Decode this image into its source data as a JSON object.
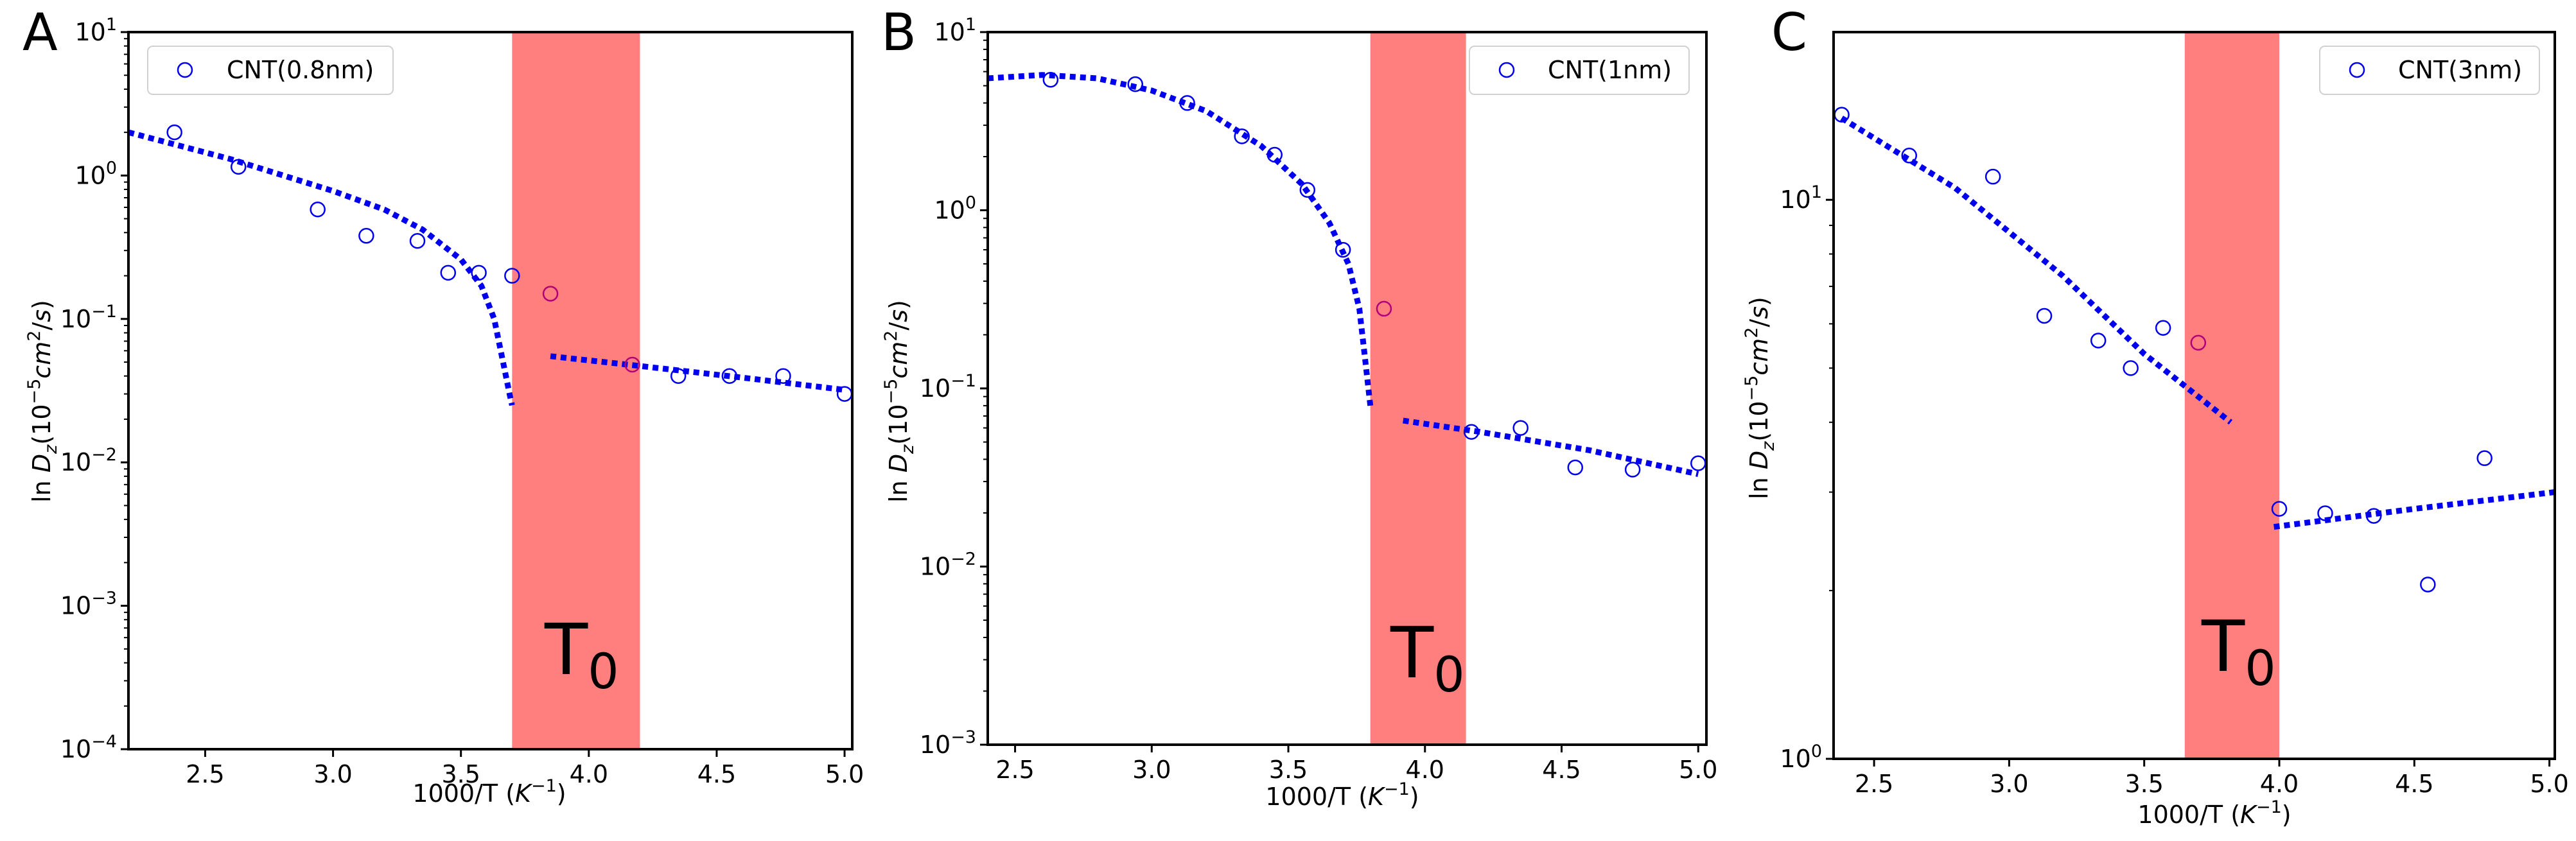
{
  "chart_data": [
    {
      "panel_label": "A",
      "type": "scatter",
      "yscale": "log",
      "xlim": [
        2.2,
        5.03
      ],
      "ylim_exp": [
        -4,
        1
      ],
      "x_ticks": [
        "2.5",
        "3.0",
        "3.5",
        "4.0",
        "4.5",
        "5.0"
      ],
      "y_ticks": [
        {
          "base": "10",
          "exp": "1"
        },
        {
          "base": "10",
          "exp": "0"
        },
        {
          "base": "10",
          "exp": "−1"
        },
        {
          "base": "10",
          "exp": "−2"
        },
        {
          "base": "10",
          "exp": "−3"
        },
        {
          "base": "10",
          "exp": "−4"
        }
      ],
      "xlabel": "1000/T (",
      "xlabel_unit": "K",
      "xlabel_exp": "−1",
      "xlabel_close": ")",
      "ylabel": {
        "pre": "ln ",
        "var": "D",
        "sub": "z",
        "open": "(10",
        "exp1": "−5",
        "unit": "cm",
        "exp2": "2",
        "slash": "/",
        "s": "s",
        "close": ")"
      },
      "legend": "CNT(0.8nm)",
      "band": {
        "x0": 3.7,
        "x1": 4.2,
        "label": "T",
        "label_sub": "0"
      },
      "series": [
        {
          "name": "CNT(0.8nm)",
          "points": [
            [
              2.38,
              2.0
            ],
            [
              2.63,
              1.15
            ],
            [
              2.94,
              0.58
            ],
            [
              3.13,
              0.38
            ],
            [
              3.33,
              0.35
            ],
            [
              3.45,
              0.21
            ],
            [
              3.57,
              0.21
            ],
            [
              3.7,
              0.2
            ],
            [
              3.85,
              0.15
            ],
            [
              4.17,
              0.048
            ],
            [
              4.35,
              0.04
            ],
            [
              4.55,
              0.04
            ],
            [
              4.76,
              0.04
            ],
            [
              5.0,
              0.03
            ]
          ]
        }
      ],
      "fit_lines": [
        [
          [
            2.2,
            2.0
          ],
          [
            2.6,
            1.3
          ],
          [
            3.0,
            0.78
          ],
          [
            3.2,
            0.58
          ],
          [
            3.35,
            0.42
          ],
          [
            3.5,
            0.26
          ],
          [
            3.58,
            0.17
          ],
          [
            3.63,
            0.1
          ],
          [
            3.66,
            0.055
          ],
          [
            3.69,
            0.03
          ],
          [
            3.7,
            0.025
          ]
        ],
        [
          [
            3.85,
            0.055
          ],
          [
            4.2,
            0.047
          ],
          [
            4.6,
            0.039
          ],
          [
            5.0,
            0.032
          ]
        ]
      ]
    },
    {
      "panel_label": "B",
      "type": "scatter",
      "yscale": "log",
      "xlim": [
        2.4,
        5.03
      ],
      "ylim_exp": [
        -3,
        1
      ],
      "x_ticks": [
        "2.5",
        "3.0",
        "3.5",
        "4.0",
        "4.5",
        "5.0"
      ],
      "y_ticks": [
        {
          "base": "10",
          "exp": "1"
        },
        {
          "base": "10",
          "exp": "0"
        },
        {
          "base": "10",
          "exp": "−1"
        },
        {
          "base": "10",
          "exp": "−2"
        },
        {
          "base": "10",
          "exp": "−3"
        }
      ],
      "xlabel": "1000/T (",
      "xlabel_unit": "K",
      "xlabel_exp": "−1",
      "xlabel_close": ")",
      "ylabel": {
        "pre": "ln ",
        "var": "D",
        "sub": "z",
        "open": "(10",
        "exp1": "−5",
        "unit": "cm",
        "exp2": "2",
        "slash": "/",
        "s": "s",
        "close": ")"
      },
      "legend": "CNT(1nm)",
      "band": {
        "x0": 3.8,
        "x1": 4.15,
        "label": "T",
        "label_sub": "0"
      },
      "series": [
        {
          "name": "CNT(1nm)",
          "points": [
            [
              2.63,
              5.4
            ],
            [
              2.94,
              5.1
            ],
            [
              3.13,
              4.0
            ],
            [
              3.33,
              2.6
            ],
            [
              3.45,
              2.05
            ],
            [
              3.57,
              1.3
            ],
            [
              3.7,
              0.6
            ],
            [
              3.85,
              0.28
            ],
            [
              4.17,
              0.057
            ],
            [
              4.35,
              0.06
            ],
            [
              4.55,
              0.036
            ],
            [
              4.76,
              0.035
            ],
            [
              5.0,
              0.038
            ]
          ]
        }
      ],
      "fit_lines": [
        [
          [
            2.4,
            5.5
          ],
          [
            2.6,
            5.75
          ],
          [
            2.8,
            5.5
          ],
          [
            3.0,
            4.7
          ],
          [
            3.2,
            3.6
          ],
          [
            3.4,
            2.3
          ],
          [
            3.55,
            1.4
          ],
          [
            3.65,
            0.85
          ],
          [
            3.72,
            0.5
          ],
          [
            3.76,
            0.28
          ],
          [
            3.78,
            0.15
          ],
          [
            3.8,
            0.08
          ]
        ],
        [
          [
            3.92,
            0.066
          ],
          [
            4.2,
            0.057
          ],
          [
            4.6,
            0.045
          ],
          [
            5.0,
            0.033
          ]
        ]
      ]
    },
    {
      "panel_label": "C",
      "type": "scatter",
      "yscale": "log",
      "xlim": [
        2.35,
        5.02
      ],
      "ylim_exp": [
        0,
        1.3
      ],
      "x_ticks": [
        "2.5",
        "3.0",
        "3.5",
        "4.0",
        "4.5",
        "5.0"
      ],
      "y_ticks": [
        {
          "base": "10",
          "exp": "1"
        },
        {
          "base": "10",
          "exp": "0"
        }
      ],
      "xlabel": "1000/T (",
      "xlabel_unit": "K",
      "xlabel_exp": "−1",
      "xlabel_close": ")",
      "ylabel": {
        "pre": "ln ",
        "var": "D",
        "sub": "z",
        "open": "(10",
        "exp1": "−5",
        "unit": "cm",
        "exp2": "2",
        "slash": "/",
        "s": "s",
        "close": ")"
      },
      "legend": "CNT(3nm)",
      "band": {
        "x0": 3.65,
        "x1": 4.0,
        "label": "T",
        "label_sub": "0"
      },
      "series": [
        {
          "name": "CNT(3nm)",
          "points": [
            [
              2.38,
              14.2
            ],
            [
              2.63,
              12.0
            ],
            [
              2.94,
              11.0
            ],
            [
              3.13,
              6.2
            ],
            [
              3.33,
              5.6
            ],
            [
              3.45,
              5.0
            ],
            [
              3.57,
              5.9
            ],
            [
              3.7,
              5.55
            ],
            [
              4.0,
              2.8
            ],
            [
              4.17,
              2.75
            ],
            [
              4.35,
              2.72
            ],
            [
              4.55,
              2.05
            ],
            [
              4.76,
              3.45
            ]
          ]
        }
      ],
      "fit_lines": [
        [
          [
            2.38,
            14.0
          ],
          [
            2.8,
            10.5
          ],
          [
            3.2,
            7.3
          ],
          [
            3.5,
            5.3
          ],
          [
            3.82,
            4.0
          ]
        ],
        [
          [
            3.98,
            2.6
          ],
          [
            4.5,
            2.8
          ],
          [
            5.02,
            3.0
          ]
        ]
      ]
    }
  ]
}
